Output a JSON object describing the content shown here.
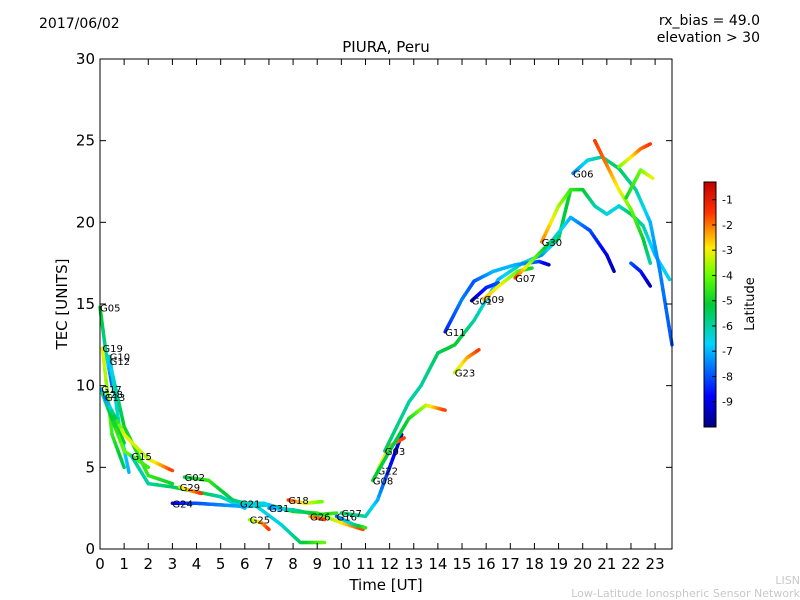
{
  "header": {
    "date": "2017/06/02",
    "rx_bias": "rx_bias = 49.0",
    "elevation": "elevation > 30"
  },
  "footer": {
    "line1": "LISN",
    "line2": "Low-Latitude Ionospheric Sensor Network"
  },
  "chart_data": {
    "type": "scatter",
    "title": "PIURA, Peru",
    "xlabel": "Time [UT]",
    "ylabel": "TEC [UNITS]",
    "xlim": [
      0,
      23.7
    ],
    "ylim": [
      0,
      30
    ],
    "xticks": [
      "0",
      "1",
      "2",
      "3",
      "4",
      "5",
      "6",
      "7",
      "8",
      "9",
      "10",
      "11",
      "12",
      "13",
      "14",
      "15",
      "16",
      "17",
      "18",
      "19",
      "20",
      "21",
      "22",
      "23"
    ],
    "yticks": [
      "0",
      "5",
      "10",
      "15",
      "20",
      "25",
      "30"
    ],
    "grid": false,
    "colorbar": {
      "label": "Latitude",
      "range": [
        -10,
        -0.3
      ],
      "ticks": [
        "-1",
        "-2",
        "-3",
        "-4",
        "-5",
        "-6",
        "-7",
        "-8",
        "-9"
      ]
    },
    "series": [
      {
        "name": "G05",
        "x": [
          0.0,
          0.25,
          0.5
        ],
        "y": [
          14.8,
          12.0,
          10.0
        ],
        "lat": [
          -5.0,
          -6.0,
          -8.0
        ]
      },
      {
        "name": "G19",
        "x": [
          0.1,
          0.5,
          1.0
        ],
        "y": [
          12.3,
          7.0,
          5.0
        ],
        "lat": [
          -3.0,
          -4.5,
          -5.5
        ]
      },
      {
        "name": "G10",
        "x": [
          0.4,
          0.8,
          1.2
        ],
        "y": [
          11.8,
          7.5,
          4.7
        ],
        "lat": [
          -6.0,
          -6.5,
          -7.0
        ]
      },
      {
        "name": "G12",
        "x": [
          0.4,
          1.0,
          2.0,
          3.0
        ],
        "y": [
          11.5,
          7.5,
          4.5,
          4.0
        ],
        "lat": [
          -7.0,
          -5.0,
          -4.5,
          -5.0
        ]
      },
      {
        "name": "G17",
        "x": [
          0.05,
          1.0
        ],
        "y": [
          9.8,
          6.5
        ],
        "lat": [
          -7.0,
          -5.0
        ]
      },
      {
        "name": "G28",
        "x": [
          0.1,
          1.0,
          2.0
        ],
        "y": [
          9.5,
          6.0,
          5.0
        ],
        "lat": [
          -6.0,
          -4.0,
          -4.5
        ]
      },
      {
        "name": "G13",
        "x": [
          0.2,
          1.0,
          2.0,
          3.0
        ],
        "y": [
          9.3,
          7.0,
          5.5,
          4.8
        ],
        "lat": [
          -8.0,
          -3.0,
          -3.5,
          -1.5
        ]
      },
      {
        "name": "G15",
        "x": [
          1.3,
          2.0,
          3.0,
          4.0,
          5.0,
          6.0
        ],
        "y": [
          5.7,
          4.0,
          3.8,
          3.5,
          3.2,
          2.5
        ],
        "lat": [
          -6.0,
          -6.0,
          -5.5,
          -5.0,
          -6.0,
          -7.0
        ]
      },
      {
        "name": "G02",
        "x": [
          3.5,
          4.5,
          5.5,
          6.5,
          7.5,
          8.3,
          9.3
        ],
        "y": [
          4.4,
          4.2,
          3.0,
          2.6,
          1.5,
          0.4,
          0.4
        ],
        "lat": [
          -5.5,
          -4.5,
          -5.5,
          -6.5,
          -6.5,
          -5.5,
          -4.0
        ]
      },
      {
        "name": "G29",
        "x": [
          3.3,
          3.7,
          4.2
        ],
        "y": [
          3.8,
          3.6,
          3.4
        ],
        "lat": [
          -3.5,
          -2.5,
          -1.5
        ]
      },
      {
        "name": "G24",
        "x": [
          3.0,
          4.0,
          5.0,
          6.0,
          7.0,
          8.0,
          9.0,
          10.0,
          10.9
        ],
        "y": [
          2.8,
          2.8,
          2.7,
          2.6,
          2.7,
          2.3,
          2.2,
          1.6,
          1.2
        ],
        "lat": [
          -9.0,
          -8.0,
          -7.5,
          -7.0,
          -6.0,
          -5.0,
          -4.5,
          -3.0,
          -1.5
        ]
      },
      {
        "name": "G21",
        "x": [
          5.8,
          6.8,
          7.5
        ],
        "y": [
          2.8,
          2.8,
          2.4
        ],
        "lat": [
          -6.0,
          -6.5,
          -7.5
        ]
      },
      {
        "name": "G25",
        "x": [
          6.2,
          6.7,
          7.0
        ],
        "y": [
          1.8,
          1.6,
          1.2
        ],
        "lat": [
          -4.0,
          -2.5,
          -1.5
        ]
      },
      {
        "name": "G18",
        "x": [
          7.8,
          8.5,
          9.2
        ],
        "y": [
          3.0,
          2.8,
          2.9
        ],
        "lat": [
          -1.5,
          -3.0,
          -4.0
        ]
      },
      {
        "name": "G31",
        "x": [
          7.0,
          8.0,
          9.0,
          9.8
        ],
        "y": [
          2.5,
          2.4,
          2.1,
          2.2
        ],
        "lat": [
          -7.5,
          -6.0,
          -5.0,
          -4.5
        ]
      },
      {
        "name": "G26",
        "x": [
          8.7,
          9.3
        ],
        "y": [
          2.0,
          1.8
        ],
        "lat": [
          -2.5,
          -1.5
        ]
      },
      {
        "name": "G16",
        "x": [
          9.8,
          10.5,
          11.0
        ],
        "y": [
          2.0,
          1.5,
          1.3
        ],
        "lat": [
          -8.0,
          -6.0,
          -4.5
        ]
      },
      {
        "name": "G27",
        "x": [
          10.0,
          11.0,
          11.5,
          12.0,
          12.5
        ],
        "y": [
          2.2,
          2.0,
          3.0,
          5.0,
          7.0
        ],
        "lat": [
          -5.5,
          -6.0,
          -7.0,
          -8.5,
          -9.5
        ]
      },
      {
        "name": "G22",
        "x": [
          11.5,
          12.0,
          12.6
        ],
        "y": [
          4.8,
          6.3,
          6.8
        ],
        "lat": [
          -3.5,
          -2.5,
          -1.5
        ]
      },
      {
        "name": "G08",
        "x": [
          11.3,
          12.0,
          12.8,
          13.5,
          14.3
        ],
        "y": [
          4.2,
          6.0,
          8.0,
          8.8,
          8.5
        ],
        "lat": [
          -5.0,
          -5.5,
          -5.0,
          -3.5,
          -1.5
        ]
      },
      {
        "name": "G03",
        "x": [
          11.8,
          12.8,
          13.3,
          14.0,
          14.7,
          15.5,
          16.5,
          17.5,
          18.3,
          19.0,
          19.5
        ],
        "y": [
          6.0,
          9.0,
          10.0,
          12.0,
          12.5,
          14.0,
          16.5,
          17.5,
          18.0,
          19.0,
          22.0
        ],
        "lat": [
          -5.5,
          -6.0,
          -6.0,
          -5.5,
          -5.0,
          -6.0,
          -7.0,
          -6.0,
          -7.5,
          -5.5,
          -5.0
        ]
      },
      {
        "name": "G23",
        "x": [
          14.7,
          15.2,
          15.7
        ],
        "y": [
          10.8,
          11.7,
          12.2
        ],
        "lat": [
          -3.5,
          -2.5,
          -1.5
        ]
      },
      {
        "name": "G11",
        "x": [
          14.3,
          15.0,
          15.5,
          16.3,
          17.2,
          18.2,
          18.6
        ],
        "y": [
          13.3,
          15.3,
          16.4,
          17.0,
          17.4,
          17.6,
          17.4
        ],
        "lat": [
          -8.5,
          -7.5,
          -8.0,
          -7.0,
          -7.0,
          -8.0,
          -9.5
        ]
      },
      {
        "name": "G01",
        "x": [
          15.4,
          16.0,
          16.5
        ],
        "y": [
          15.2,
          16.0,
          16.3
        ],
        "lat": [
          -9.5,
          -8.5,
          -8.0
        ]
      },
      {
        "name": "G09",
        "x": [
          15.9,
          16.6,
          17.3,
          17.9
        ],
        "y": [
          15.3,
          16.2,
          17.0,
          17.2
        ],
        "lat": [
          -2.5,
          -3.0,
          -4.0,
          -5.0
        ]
      },
      {
        "name": "G07",
        "x": [
          17.2,
          18.0,
          18.8,
          19.5,
          20.3,
          21.0,
          21.3
        ],
        "y": [
          16.6,
          17.8,
          19.0,
          20.3,
          19.5,
          18.0,
          17.0
        ],
        "lat": [
          -1.5,
          -4.0,
          -6.0,
          -7.0,
          -8.0,
          -9.0,
          -9.5
        ]
      },
      {
        "name": "G30",
        "x": [
          18.3,
          19.0,
          19.5,
          20.0,
          20.5,
          21.0,
          21.5,
          22.0,
          22.5,
          23.0,
          23.6
        ],
        "y": [
          18.8,
          21.0,
          22.0,
          22.0,
          21.0,
          20.5,
          21.0,
          20.5,
          19.8,
          18.0,
          16.5
        ],
        "lat": [
          -2.0,
          -3.5,
          -4.5,
          -5.0,
          -6.0,
          -6.5,
          -6.5,
          -5.5,
          -6.0,
          -7.0,
          -6.5
        ]
      },
      {
        "name": "G06",
        "x": [
          19.6,
          20.2,
          20.8,
          21.5,
          22.2,
          22.8,
          23.2,
          23.7
        ],
        "y": [
          23.0,
          23.8,
          24.0,
          23.3,
          22.0,
          20.0,
          17.0,
          12.5
        ],
        "lat": [
          -7.5,
          -6.5,
          -6.0,
          -5.5,
          -6.0,
          -7.0,
          -7.5,
          -8.0
        ]
      },
      {
        "name": "",
        "x": [
          20.5,
          21.0,
          21.5,
          22.0,
          22.5,
          22.8
        ],
        "y": [
          25.0,
          23.5,
          22.0,
          20.8,
          19.0,
          17.5
        ],
        "lat": [
          -1.5,
          -2.0,
          -3.0,
          -4.0,
          -5.0,
          -6.0
        ]
      },
      {
        "name": "",
        "x": [
          21.5,
          22.0,
          22.4,
          22.8
        ],
        "y": [
          23.4,
          24.0,
          24.5,
          24.8
        ],
        "lat": [
          -4.0,
          -3.0,
          -2.0,
          -1.5
        ]
      },
      {
        "name": "",
        "x": [
          21.8,
          22.4,
          22.9
        ],
        "y": [
          21.5,
          23.2,
          22.7
        ],
        "lat": [
          -5.0,
          -4.0,
          -3.0
        ]
      },
      {
        "name": "",
        "x": [
          22.0,
          22.4,
          22.8
        ],
        "y": [
          17.5,
          17.0,
          16.1
        ],
        "lat": [
          -8.0,
          -8.5,
          -9.5
        ]
      }
    ]
  }
}
